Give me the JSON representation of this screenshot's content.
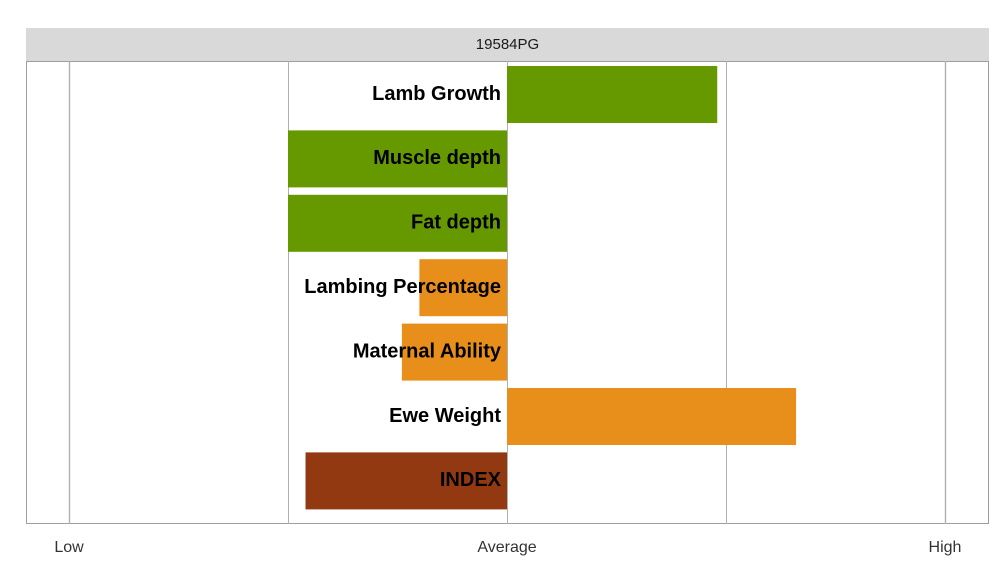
{
  "chart_data": {
    "type": "bar",
    "orientation": "horizontal",
    "title": "19584PG",
    "xlabel": "",
    "ylabel": "",
    "xlim": [
      -1,
      1
    ],
    "x_ticks": [
      {
        "value": -1,
        "label": "Low"
      },
      {
        "value": 0,
        "label": "Average"
      },
      {
        "value": 1,
        "label": "High"
      }
    ],
    "gridlines": [
      -1,
      -0.5,
      0,
      0.5,
      1
    ],
    "grid": true,
    "categories": [
      "Lamb Growth",
      "Muscle depth",
      "Fat depth",
      "Lambing Percentage",
      "Maternal Ability",
      "Ewe Weight",
      "INDEX"
    ],
    "values": [
      0.48,
      -0.5,
      -0.5,
      -0.2,
      -0.24,
      0.66,
      -0.46
    ],
    "bar_colors": [
      "#669900",
      "#669900",
      "#669900",
      "#e88e1b",
      "#e88e1b",
      "#e88e1b",
      "#933911"
    ]
  },
  "colors": {
    "header_strip": "#d9d9d9",
    "frame": "#9e9e9e",
    "gridline": "#b0b0b0",
    "label_text": "#000000",
    "tick_text": "#333333"
  }
}
